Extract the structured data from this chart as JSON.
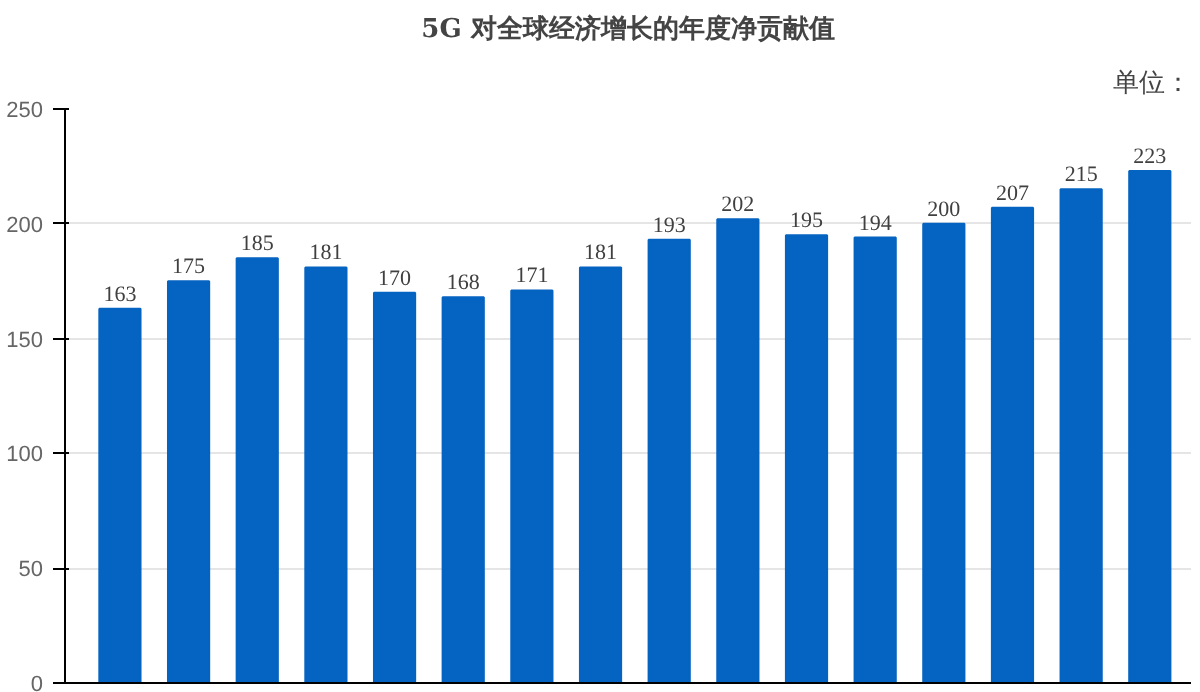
{
  "chart_data": {
    "type": "bar",
    "title": "5G 对全球经济增长的年度净贡献值",
    "annotations": [
      "单位："
    ],
    "categories": [
      null,
      null,
      null,
      null,
      null,
      null,
      null,
      null,
      null,
      null,
      null,
      null,
      null,
      null,
      null,
      null
    ],
    "values": [
      163,
      175,
      185,
      181,
      170,
      168,
      171,
      181,
      193,
      202,
      195,
      194,
      200,
      207,
      215,
      223
    ],
    "color": "#0563c1",
    "data_labels": true,
    "ylim": [
      0,
      250
    ],
    "yticks": [
      0,
      50,
      100,
      150,
      200,
      250
    ],
    "grid": "y"
  }
}
